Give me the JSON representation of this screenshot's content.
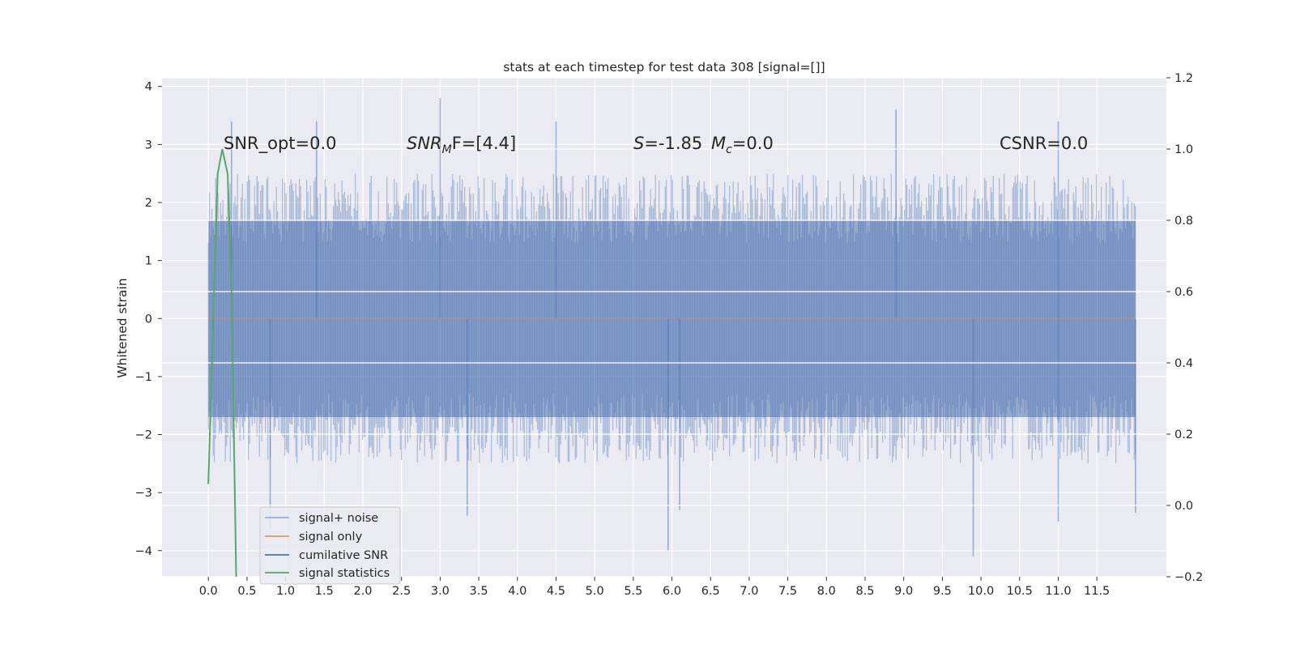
{
  "chart_data": {
    "type": "line",
    "title": "stats at each timestep for test data 308 [signal=[]]",
    "ylabel": "Whitened strain",
    "xlabel": "",
    "xlim": [
      -0.6,
      12.4
    ],
    "ylim": [
      -4.45,
      4.15
    ],
    "y2lim": [
      -0.2,
      1.2
    ],
    "x_ticks": [
      "0.0",
      "0.5",
      "1.0",
      "1.5",
      "2.0",
      "2.5",
      "3.0",
      "3.5",
      "4.0",
      "4.5",
      "5.0",
      "5.5",
      "6.0",
      "6.5",
      "7.0",
      "7.5",
      "8.0",
      "8.5",
      "9.0",
      "9.5",
      "10.0",
      "10.5",
      "11.0",
      "11.5"
    ],
    "y_ticks": [
      "4",
      "3",
      "2",
      "1",
      "0",
      "−1",
      "−2",
      "−3",
      "−4"
    ],
    "y2_ticks": [
      "1.2",
      "1.0",
      "0.8",
      "0.6",
      "0.4",
      "0.2",
      "0.0",
      "−0.2"
    ],
    "grid": true,
    "legend_position": "lower-left",
    "annotations": {
      "snr_opt": "SNR_opt=0.0",
      "snr_mf_main": "SNR",
      "snr_mf_sub": "M",
      "snr_mf_rest": "F=[4.4]",
      "s_symbol": "S",
      "s_value": "=-1.85",
      "mc_main": "M",
      "mc_sub": "c",
      "mc_value": "=0.0",
      "csnr": "CSNR=0.0"
    },
    "series": [
      {
        "name": "signal+ noise",
        "color": "#4c72b0",
        "axis": "left",
        "kind": "noise",
        "x_range": [
          0.0,
          12.0
        ],
        "typical_range": [
          -1.7,
          1.7
        ],
        "peaks_pos": [
          [
            0.3,
            3.4
          ],
          [
            1.4,
            3.4
          ],
          [
            3.0,
            3.8
          ],
          [
            4.5,
            3.4
          ],
          [
            8.9,
            3.6
          ],
          [
            11.0,
            3.4
          ]
        ],
        "peaks_neg": [
          [
            0.8,
            -3.6
          ],
          [
            3.35,
            -3.4
          ],
          [
            5.95,
            -4.0
          ],
          [
            6.1,
            -3.3
          ],
          [
            9.9,
            -4.1
          ],
          [
            11.0,
            -3.5
          ],
          [
            12.0,
            -3.35
          ]
        ]
      },
      {
        "name": "signal only",
        "color": "#dd8452",
        "axis": "left",
        "points": [
          [
            0.0,
            0.0
          ],
          [
            12.0,
            0.0
          ]
        ]
      },
      {
        "name": "cumilative SNR",
        "color": "#4c72b0",
        "axis": "right",
        "points": []
      },
      {
        "name": "signal statistics",
        "color": "#55a868",
        "axis": "right",
        "points": [
          [
            0.0,
            0.06
          ],
          [
            0.12,
            0.93
          ],
          [
            0.18,
            1.0
          ],
          [
            0.25,
            0.93
          ],
          [
            0.3,
            0.6
          ],
          [
            0.36,
            -0.2
          ]
        ]
      }
    ]
  }
}
